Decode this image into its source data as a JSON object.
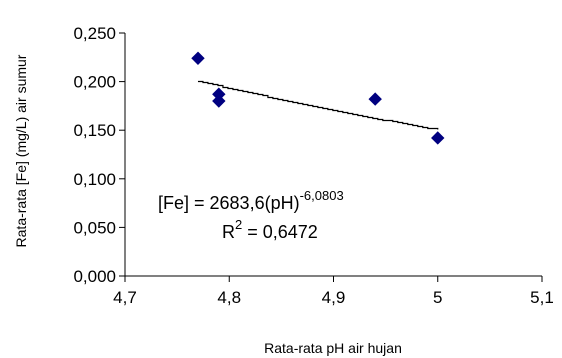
{
  "chart_data": {
    "type": "scatter",
    "xlabel": "Rata-rata pH air hujan",
    "ylabel": "Rata-rata [Fe] (mg/L) air sumur",
    "xlim": [
      4.7,
      5.1
    ],
    "ylim": [
      0.0,
      0.25
    ],
    "xticks": [
      4.7,
      4.8,
      4.9,
      5.0,
      5.1
    ],
    "xtick_labels": [
      "4,7",
      "4,8",
      "4,9",
      "5",
      "5,1"
    ],
    "yticks": [
      0.0,
      0.05,
      0.1,
      0.15,
      0.2,
      0.25
    ],
    "ytick_labels": [
      "0,000",
      "0,050",
      "0,100",
      "0,150",
      "0,200",
      "0,250"
    ],
    "grid": false,
    "legend": "none",
    "marker": "diamond",
    "marker_color": "#000080",
    "points": [
      {
        "x": 4.77,
        "y": 0.224
      },
      {
        "x": 4.79,
        "y": 0.187
      },
      {
        "x": 4.79,
        "y": 0.18
      },
      {
        "x": 4.94,
        "y": 0.182
      },
      {
        "x": 5.0,
        "y": 0.142
      }
    ],
    "trendline": {
      "type": "power",
      "coefficient": 2683.6,
      "exponent": -6.0803,
      "x_range": [
        4.77,
        5.0
      ],
      "equation_main": "[Fe] = 2683,6(pH)",
      "equation_exponent": "-6,0803",
      "r2_main": "R",
      "r2_sup": "2",
      "r2_value": " = 0,6472"
    }
  }
}
